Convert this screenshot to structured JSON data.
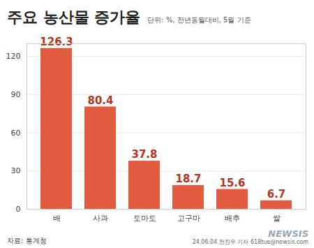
{
  "chart_data": {
    "type": "bar",
    "title": "주요 농산물 증가율",
    "subtitle": "단위: %, 전년동월대비, 5월 기준",
    "categories": [
      "배",
      "사과",
      "토마토",
      "고구마",
      "배추",
      "쌀"
    ],
    "values": [
      126.3,
      80.4,
      37.8,
      18.7,
      15.6,
      6.7
    ],
    "color": "#e35b3e",
    "ylim": [
      0,
      130
    ],
    "yticks": [
      0,
      30,
      60,
      90,
      120
    ],
    "grid": true,
    "data_labels": true,
    "source": "자료: 통계청",
    "credit": "24.06.04 전진우 기자 618tue@newsis.com",
    "watermark": "NEWSIS"
  }
}
